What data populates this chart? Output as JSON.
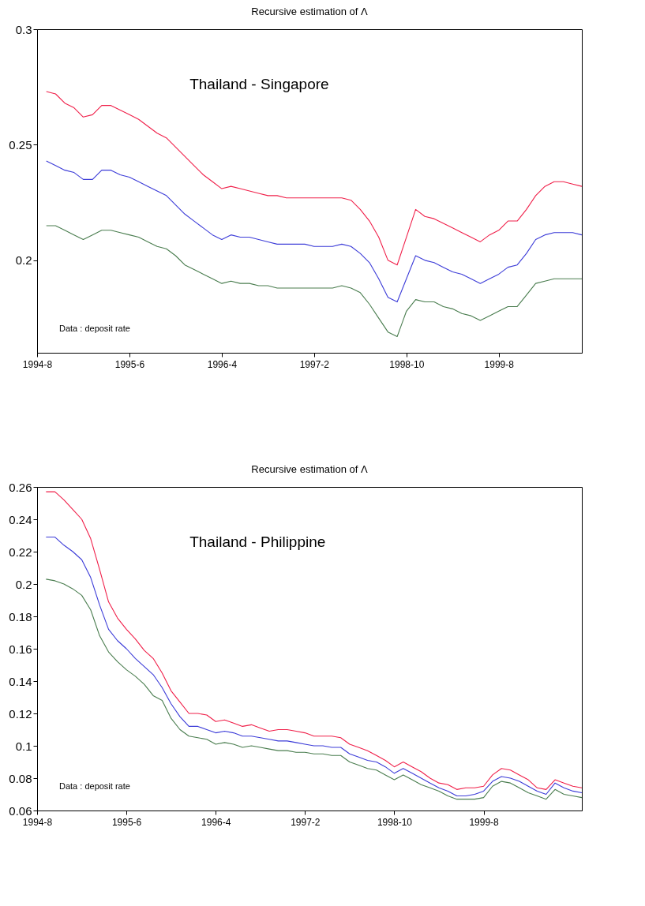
{
  "chart_data": [
    {
      "type": "line",
      "title": "Recursive estimation of Λ",
      "annotations": [
        "Thailand - Singapore",
        "Data :  deposit rate"
      ],
      "categories": [
        "1994-8",
        null,
        null,
        null,
        null,
        null,
        null,
        null,
        null,
        null,
        "1995-6",
        null,
        null,
        null,
        null,
        null,
        null,
        null,
        null,
        null,
        "1996-4",
        null,
        null,
        null,
        null,
        null,
        null,
        null,
        null,
        null,
        "1997-2",
        null,
        null,
        null,
        null,
        null,
        null,
        null,
        null,
        null,
        "1998-10",
        null,
        null,
        null,
        null,
        null,
        null,
        null,
        null,
        null,
        "1999-8",
        null,
        null,
        null,
        null,
        null,
        null,
        null,
        null,
        null
      ],
      "ylim": [
        0.16,
        0.3
      ],
      "yticks": [
        0.2,
        0.25,
        0.3
      ],
      "grid": false,
      "series": [
        {
          "color": "#f0204a",
          "values": [
            null,
            0.273,
            0.272,
            0.268,
            0.266,
            0.262,
            0.263,
            0.267,
            0.267,
            0.265,
            0.263,
            0.261,
            0.258,
            0.255,
            0.253,
            0.249,
            0.245,
            0.241,
            0.237,
            0.234,
            0.231,
            0.232,
            0.231,
            0.23,
            0.229,
            0.228,
            0.228,
            0.227,
            0.227,
            0.227,
            0.227,
            0.227,
            0.227,
            0.227,
            0.226,
            0.222,
            0.217,
            0.21,
            0.2,
            0.198,
            0.21,
            0.222,
            0.219,
            0.218,
            0.216,
            0.214,
            0.212,
            0.21,
            0.208,
            0.211,
            0.213,
            0.217,
            0.217,
            0.222,
            0.228,
            0.232,
            0.234,
            0.234,
            0.233,
            0.232
          ]
        },
        {
          "color": "#3c3cd8",
          "values": [
            null,
            0.243,
            0.241,
            0.239,
            0.238,
            0.235,
            0.235,
            0.239,
            0.239,
            0.237,
            0.236,
            0.234,
            0.232,
            0.23,
            0.228,
            0.224,
            0.22,
            0.217,
            0.214,
            0.211,
            0.209,
            0.211,
            0.21,
            0.21,
            0.209,
            0.208,
            0.207,
            0.207,
            0.207,
            0.207,
            0.206,
            0.206,
            0.206,
            0.207,
            0.206,
            0.203,
            0.199,
            0.192,
            0.184,
            0.182,
            0.192,
            0.202,
            0.2,
            0.199,
            0.197,
            0.195,
            0.194,
            0.192,
            0.19,
            0.192,
            0.194,
            0.197,
            0.198,
            0.203,
            0.209,
            0.211,
            0.212,
            0.212,
            0.212,
            0.211
          ]
        },
        {
          "color": "#4a7d4f",
          "values": [
            null,
            0.215,
            0.215,
            0.213,
            0.211,
            0.209,
            0.211,
            0.213,
            0.213,
            0.212,
            0.211,
            0.21,
            0.208,
            0.206,
            0.205,
            0.202,
            0.198,
            0.196,
            0.194,
            0.192,
            0.19,
            0.191,
            0.19,
            0.19,
            0.189,
            0.189,
            0.188,
            0.188,
            0.188,
            0.188,
            0.188,
            0.188,
            0.188,
            0.189,
            0.188,
            0.186,
            0.181,
            0.175,
            0.169,
            0.167,
            0.178,
            0.183,
            0.182,
            0.182,
            0.18,
            0.179,
            0.177,
            0.176,
            0.174,
            0.176,
            0.178,
            0.18,
            0.18,
            0.185,
            0.19,
            0.191,
            0.192,
            0.192,
            0.192,
            0.192
          ]
        }
      ]
    },
    {
      "type": "line",
      "title": "Recursive estimation of Λ",
      "annotations": [
        "Thailand - Philippine",
        "Data : deposit  rate"
      ],
      "categories": [
        "1994-8",
        null,
        null,
        null,
        null,
        null,
        null,
        null,
        null,
        null,
        "1995-6",
        null,
        null,
        null,
        null,
        null,
        null,
        null,
        null,
        null,
        "1996-4",
        null,
        null,
        null,
        null,
        null,
        null,
        null,
        null,
        null,
        "1997-2",
        null,
        null,
        null,
        null,
        null,
        null,
        null,
        null,
        null,
        "1998-10",
        null,
        null,
        null,
        null,
        null,
        null,
        null,
        null,
        null,
        "1999-8",
        null,
        null,
        null,
        null,
        null,
        null,
        null,
        null,
        null,
        null,
        null
      ],
      "ylim": [
        0.06,
        0.26
      ],
      "yticks": [
        0.06,
        0.08,
        0.1,
        0.12,
        0.14,
        0.16,
        0.18,
        0.2,
        0.22,
        0.24,
        0.26
      ],
      "grid": false,
      "series": [
        {
          "color": "#f0204a",
          "values": [
            null,
            0.257,
            0.257,
            0.252,
            0.246,
            0.24,
            0.228,
            0.209,
            0.189,
            0.179,
            0.172,
            0.166,
            0.159,
            0.154,
            0.145,
            0.134,
            0.127,
            0.12,
            0.12,
            0.119,
            0.115,
            0.116,
            0.114,
            0.112,
            0.113,
            0.111,
            0.109,
            0.11,
            0.11,
            0.109,
            0.108,
            0.106,
            0.106,
            0.106,
            0.105,
            0.101,
            0.099,
            0.097,
            0.094,
            0.091,
            0.087,
            0.09,
            0.087,
            0.084,
            0.08,
            0.077,
            0.076,
            0.073,
            0.074,
            0.074,
            0.075,
            0.082,
            0.086,
            0.085,
            0.082,
            0.079,
            0.074,
            0.073,
            0.079,
            0.077,
            0.075,
            0.074
          ]
        },
        {
          "color": "#3c3cd8",
          "values": [
            null,
            0.229,
            0.229,
            0.224,
            0.22,
            0.215,
            0.204,
            0.187,
            0.172,
            0.165,
            0.16,
            0.154,
            0.149,
            0.144,
            0.136,
            0.126,
            0.118,
            0.112,
            0.112,
            0.11,
            0.108,
            0.109,
            0.108,
            0.106,
            0.106,
            0.105,
            0.104,
            0.103,
            0.103,
            0.102,
            0.101,
            0.1,
            0.1,
            0.099,
            0.099,
            0.095,
            0.093,
            0.091,
            0.09,
            0.087,
            0.083,
            0.086,
            0.083,
            0.08,
            0.077,
            0.074,
            0.072,
            0.069,
            0.069,
            0.07,
            0.072,
            0.078,
            0.081,
            0.08,
            0.078,
            0.075,
            0.072,
            0.07,
            0.077,
            0.074,
            0.072,
            0.071
          ]
        },
        {
          "color": "#4a7d4f",
          "values": [
            null,
            0.203,
            0.202,
            0.2,
            0.197,
            0.193,
            0.184,
            0.168,
            0.158,
            0.152,
            0.147,
            0.143,
            0.138,
            0.131,
            0.128,
            0.117,
            0.11,
            0.106,
            0.105,
            0.104,
            0.101,
            0.102,
            0.101,
            0.099,
            0.1,
            0.099,
            0.098,
            0.097,
            0.097,
            0.096,
            0.096,
            0.095,
            0.095,
            0.094,
            0.094,
            0.09,
            0.088,
            0.086,
            0.085,
            0.082,
            0.079,
            0.082,
            0.079,
            0.076,
            0.074,
            0.072,
            0.069,
            0.067,
            0.067,
            0.067,
            0.068,
            0.075,
            0.078,
            0.077,
            0.074,
            0.071,
            0.069,
            0.067,
            0.073,
            0.07,
            0.069,
            0.068
          ]
        }
      ]
    }
  ]
}
